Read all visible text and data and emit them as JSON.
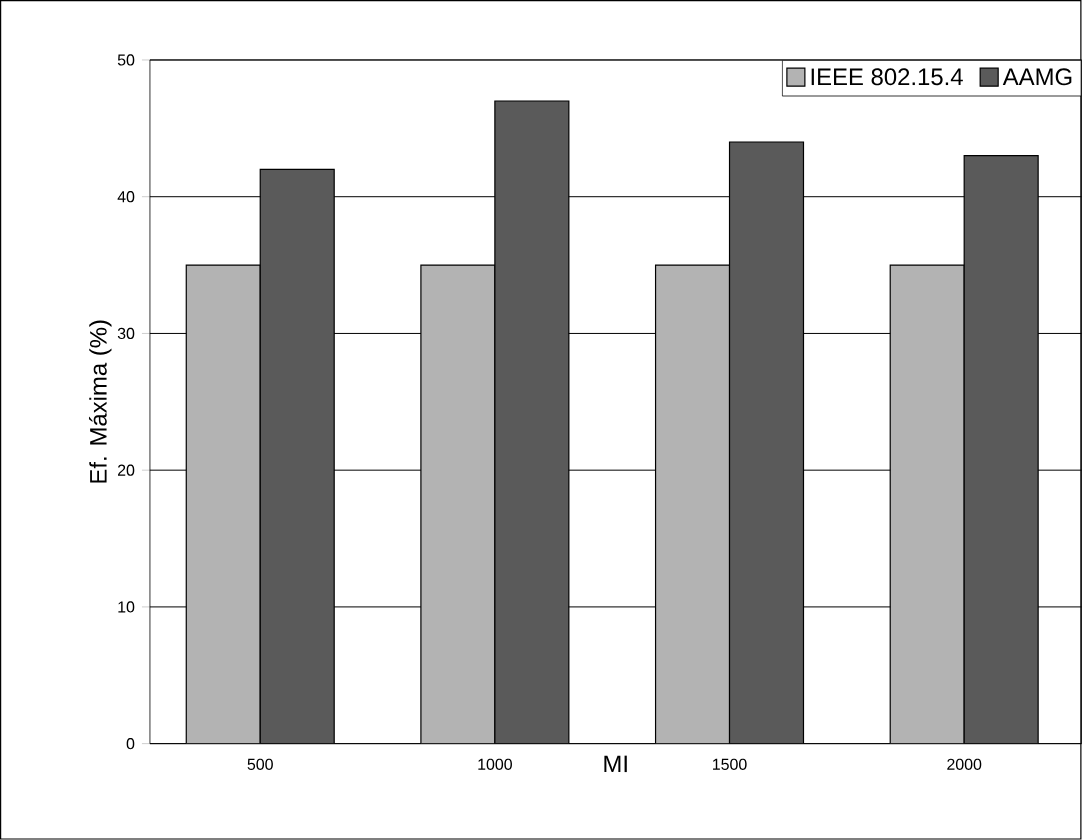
{
  "chart_data": {
    "type": "bar",
    "xlabel": "MI",
    "ylabel": "Ef. Máxima (%)",
    "categories": [
      "500",
      "1000",
      "1500",
      "2000"
    ],
    "series": [
      {
        "name": "IEEE 802.15.4",
        "color": "#b3b3b3",
        "values": [
          35,
          35,
          35,
          35
        ]
      },
      {
        "name": "AAMG",
        "color": "#5a5a5a",
        "values": [
          42,
          47,
          44,
          43
        ]
      }
    ],
    "ylim": [
      0,
      50
    ],
    "yticks": [
      0,
      10,
      20,
      30,
      40,
      50
    ],
    "grid": "y",
    "legend": "top right"
  }
}
